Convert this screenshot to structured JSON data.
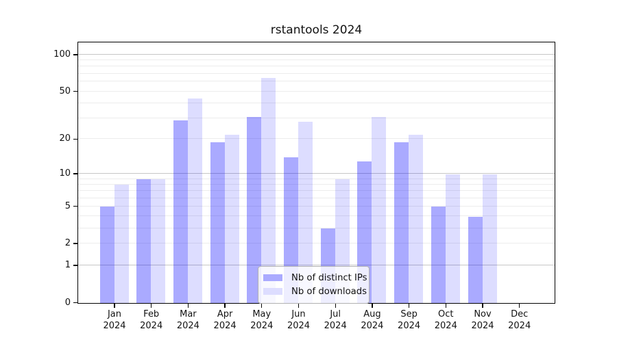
{
  "title": "rstantools 2024",
  "chart_data": {
    "type": "bar",
    "title": "rstantools 2024",
    "scale": "log1p (position proportional to log10(value+1), 0 at baseline)",
    "categories": [
      "Jan 2024",
      "Feb 2024",
      "Mar 2024",
      "Apr 2024",
      "May 2024",
      "Jun 2024",
      "Jul 2024",
      "Aug 2024",
      "Sep 2024",
      "Oct 2024",
      "Nov 2024",
      "Dec 2024"
    ],
    "series": [
      {
        "name": "Nb of distinct IPs",
        "color": "rgba(0,0,255,0.335)",
        "solid_color": "#aaaaff",
        "values": [
          5,
          9,
          29,
          19,
          31,
          14,
          3,
          13,
          19,
          5,
          4,
          0
        ]
      },
      {
        "name": "Nb of downloads",
        "color": "rgba(0,0,255,0.135)",
        "solid_color": "#ddddff",
        "values": [
          8,
          9,
          44,
          22,
          65,
          28,
          9,
          31,
          22,
          10,
          10,
          0
        ]
      }
    ],
    "y_ticks": [
      100,
      50,
      20,
      10,
      5,
      2,
      1,
      0
    ],
    "ylim": [
      0,
      125
    ],
    "grid": {
      "major": [
        1,
        10,
        100
      ],
      "minor": [
        2,
        3,
        4,
        5,
        6,
        7,
        8,
        9,
        20,
        30,
        40,
        50,
        60,
        70,
        80,
        90
      ]
    },
    "legend_position": "bottom-center",
    "xlabel": "",
    "ylabel": ""
  },
  "colors": {
    "grid_major": "#c6c6c6",
    "grid_minor": "#ececec",
    "spine": "#000000",
    "text": "#111111",
    "legend_border": "#b0b0b0"
  }
}
